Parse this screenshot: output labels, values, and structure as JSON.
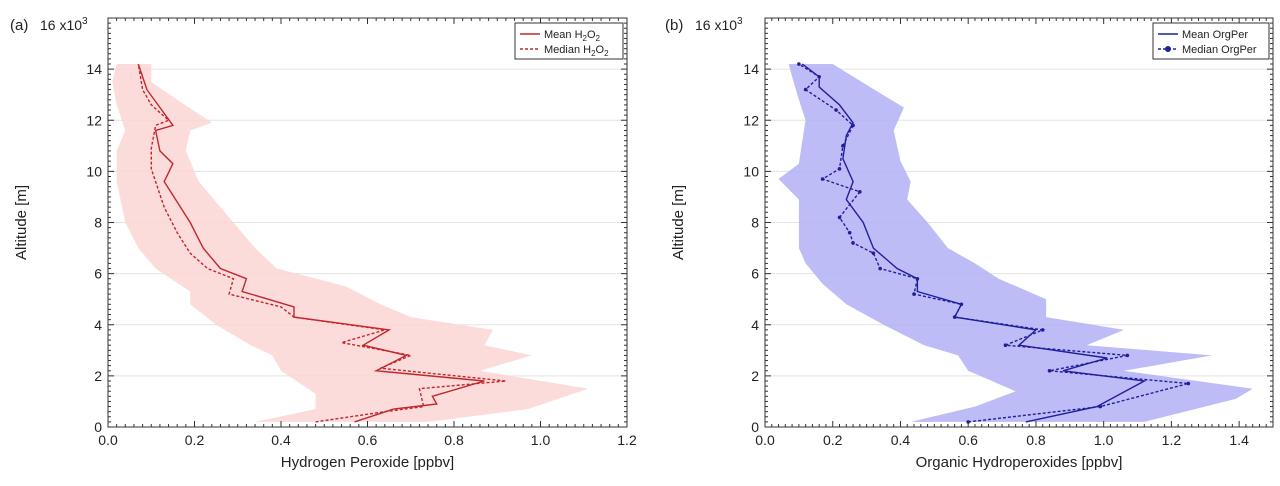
{
  "chart_data": [
    {
      "type": "line",
      "panel_label": "(a)",
      "xlabel": "Hydrogen  Peroxide [ppbv]",
      "ylabel": "Altitude [m]",
      "y_multiplier_label": "16 x10",
      "y_multiplier_exp": "3",
      "xlim": [
        0,
        1.2
      ],
      "ylim": [
        0,
        16000
      ],
      "xticks": [
        "0.0",
        "0.2",
        "0.4",
        "0.6",
        "0.8",
        "1.0",
        "1.2"
      ],
      "yticks": [
        "0",
        "2",
        "4",
        "6",
        "8",
        "10",
        "12",
        "14"
      ],
      "grid": "horizontal",
      "legend_position": "top-right",
      "colors": {
        "line": "#c0282d",
        "band": "#fcd5d5"
      },
      "legend": [
        {
          "label": "Mean H",
          "sub": "2",
          "mid": "O",
          "sub2": "2",
          "style": "solid"
        },
        {
          "label": "Median H",
          "sub": "2",
          "mid": "O",
          "sub2": "2",
          "style": "dotted"
        }
      ],
      "series": [
        {
          "name": "Mean H2O2",
          "style": "solid",
          "points": [
            [
              0.57,
              200
            ],
            [
              0.66,
              700
            ],
            [
              0.76,
              900
            ],
            [
              0.75,
              1200
            ],
            [
              0.87,
              1800
            ],
            [
              0.62,
              2200
            ],
            [
              0.69,
              2800
            ],
            [
              0.59,
              3200
            ],
            [
              0.65,
              3800
            ],
            [
              0.43,
              4300
            ],
            [
              0.43,
              4700
            ],
            [
              0.31,
              5300
            ],
            [
              0.32,
              5800
            ],
            [
              0.26,
              6200
            ],
            [
              0.22,
              7000
            ],
            [
              0.19,
              8000
            ],
            [
              0.16,
              8800
            ],
            [
              0.13,
              9600
            ],
            [
              0.15,
              10300
            ],
            [
              0.12,
              10800
            ],
            [
              0.11,
              11600
            ],
            [
              0.15,
              11800
            ],
            [
              0.12,
              12500
            ],
            [
              0.09,
              13200
            ],
            [
              0.07,
              14200
            ]
          ]
        },
        {
          "name": "Median H2O2",
          "style": "dotted",
          "points": [
            [
              0.48,
              200
            ],
            [
              0.64,
              600
            ],
            [
              0.73,
              800
            ],
            [
              0.72,
              1500
            ],
            [
              0.92,
              1800
            ],
            [
              0.63,
              2300
            ],
            [
              0.7,
              2800
            ],
            [
              0.54,
              3300
            ],
            [
              0.64,
              3800
            ],
            [
              0.43,
              4300
            ],
            [
              0.4,
              4700
            ],
            [
              0.28,
              5200
            ],
            [
              0.29,
              5800
            ],
            [
              0.23,
              6200
            ],
            [
              0.19,
              6800
            ],
            [
              0.16,
              7600
            ],
            [
              0.13,
              8600
            ],
            [
              0.11,
              9600
            ],
            [
              0.1,
              10100
            ],
            [
              0.1,
              10900
            ],
            [
              0.11,
              11800
            ],
            [
              0.14,
              12000
            ],
            [
              0.1,
              12600
            ],
            [
              0.08,
              13200
            ],
            [
              0.07,
              14200
            ]
          ]
        }
      ],
      "band": {
        "name": "Mean H2O2 range",
        "upper": [
          [
            0.74,
            200
          ],
          [
            0.97,
            700
          ],
          [
            1.11,
            1500
          ],
          [
            0.86,
            2200
          ],
          [
            0.98,
            2800
          ],
          [
            0.87,
            3200
          ],
          [
            0.89,
            3800
          ],
          [
            0.7,
            4300
          ],
          [
            0.63,
            4800
          ],
          [
            0.55,
            5500
          ],
          [
            0.39,
            6200
          ],
          [
            0.34,
            7000
          ],
          [
            0.29,
            8000
          ],
          [
            0.21,
            9600
          ],
          [
            0.18,
            10800
          ],
          [
            0.19,
            11600
          ],
          [
            0.24,
            11900
          ],
          [
            0.16,
            12800
          ],
          [
            0.1,
            13500
          ],
          [
            0.1,
            14200
          ]
        ],
        "lower": [
          [
            0.34,
            200
          ],
          [
            0.48,
            700
          ],
          [
            0.48,
            1300
          ],
          [
            0.4,
            2200
          ],
          [
            0.38,
            2800
          ],
          [
            0.33,
            3200
          ],
          [
            0.25,
            4000
          ],
          [
            0.19,
            4800
          ],
          [
            0.19,
            5300
          ],
          [
            0.11,
            6200
          ],
          [
            0.07,
            7000
          ],
          [
            0.04,
            8000
          ],
          [
            0.02,
            9600
          ],
          [
            0.02,
            10800
          ],
          [
            0.04,
            11600
          ],
          [
            0.02,
            12600
          ],
          [
            0.01,
            13500
          ],
          [
            0.02,
            14200
          ]
        ]
      }
    },
    {
      "type": "line",
      "panel_label": "(b)",
      "xlabel": "Organic Hydroperoxides [ppbv]",
      "ylabel": "Altitude [m]",
      "y_multiplier_label": "16 x10",
      "y_multiplier_exp": "3",
      "xlim": [
        0,
        1.5
      ],
      "ylim": [
        0,
        16000
      ],
      "xticks": [
        "0.0",
        "0.2",
        "0.4",
        "0.6",
        "0.8",
        "1.0",
        "1.2",
        "1.4"
      ],
      "yticks": [
        "0",
        "2",
        "4",
        "6",
        "8",
        "10",
        "12",
        "14"
      ],
      "grid": "horizontal",
      "legend_position": "top-right",
      "colors": {
        "line": "#1f1f9c",
        "band": "#b3b0f4"
      },
      "legend": [
        {
          "label": "Mean OrgPer",
          "style": "solid"
        },
        {
          "label": "Median OrgPer",
          "style": "dotted-marker"
        }
      ],
      "series": [
        {
          "name": "Mean OrgPer",
          "style": "solid",
          "points": [
            [
              0.77,
              200
            ],
            [
              0.98,
              800
            ],
            [
              1.12,
              1800
            ],
            [
              0.88,
              2200
            ],
            [
              1.01,
              2700
            ],
            [
              0.75,
              3200
            ],
            [
              0.8,
              3800
            ],
            [
              0.56,
              4300
            ],
            [
              0.58,
              4800
            ],
            [
              0.45,
              5300
            ],
            [
              0.45,
              5800
            ],
            [
              0.39,
              6200
            ],
            [
              0.32,
              7000
            ],
            [
              0.29,
              8000
            ],
            [
              0.24,
              8900
            ],
            [
              0.26,
              9600
            ],
            [
              0.23,
              10500
            ],
            [
              0.24,
              11400
            ],
            [
              0.26,
              11900
            ],
            [
              0.22,
              12600
            ],
            [
              0.16,
              13300
            ],
            [
              0.16,
              13700
            ],
            [
              0.11,
              14200
            ]
          ]
        },
        {
          "name": "Median OrgPer",
          "style": "dotted",
          "points": [
            [
              0.6,
              200
            ],
            [
              0.99,
              800
            ],
            [
              1.25,
              1700
            ],
            [
              0.84,
              2200
            ],
            [
              1.07,
              2800
            ],
            [
              0.71,
              3200
            ],
            [
              0.82,
              3800
            ],
            [
              0.56,
              4300
            ],
            [
              0.58,
              4800
            ],
            [
              0.44,
              5200
            ],
            [
              0.45,
              5800
            ],
            [
              0.34,
              6200
            ],
            [
              0.32,
              6800
            ],
            [
              0.26,
              7200
            ],
            [
              0.25,
              7600
            ],
            [
              0.22,
              8200
            ],
            [
              0.28,
              9200
            ],
            [
              0.17,
              9700
            ],
            [
              0.22,
              10100
            ],
            [
              0.23,
              11000
            ],
            [
              0.26,
              11800
            ],
            [
              0.21,
              12400
            ],
            [
              0.12,
              13200
            ],
            [
              0.16,
              13700
            ],
            [
              0.1,
              14200
            ]
          ]
        }
      ],
      "band": {
        "name": "Mean OrgPer range",
        "upper": [
          [
            1.12,
            200
          ],
          [
            1.39,
            1100
          ],
          [
            1.44,
            1500
          ],
          [
            1.06,
            2200
          ],
          [
            1.32,
            2800
          ],
          [
            0.95,
            3200
          ],
          [
            1.06,
            3800
          ],
          [
            0.83,
            4300
          ],
          [
            0.83,
            5000
          ],
          [
            0.69,
            5800
          ],
          [
            0.62,
            6400
          ],
          [
            0.54,
            7000
          ],
          [
            0.48,
            8000
          ],
          [
            0.42,
            8900
          ],
          [
            0.43,
            9600
          ],
          [
            0.4,
            10400
          ],
          [
            0.38,
            11600
          ],
          [
            0.41,
            12500
          ],
          [
            0.31,
            13300
          ],
          [
            0.2,
            14200
          ]
        ],
        "lower": [
          [
            0.43,
            200
          ],
          [
            0.62,
            800
          ],
          [
            0.74,
            1400
          ],
          [
            0.6,
            2200
          ],
          [
            0.57,
            2800
          ],
          [
            0.47,
            3200
          ],
          [
            0.35,
            4000
          ],
          [
            0.24,
            4800
          ],
          [
            0.17,
            5600
          ],
          [
            0.12,
            6400
          ],
          [
            0.1,
            7000
          ],
          [
            0.1,
            8000
          ],
          [
            0.1,
            8900
          ],
          [
            0.04,
            9700
          ],
          [
            0.1,
            10300
          ],
          [
            0.11,
            11200
          ],
          [
            0.12,
            12000
          ],
          [
            0.1,
            12800
          ],
          [
            0.08,
            13700
          ],
          [
            0.07,
            14200
          ]
        ]
      }
    }
  ]
}
